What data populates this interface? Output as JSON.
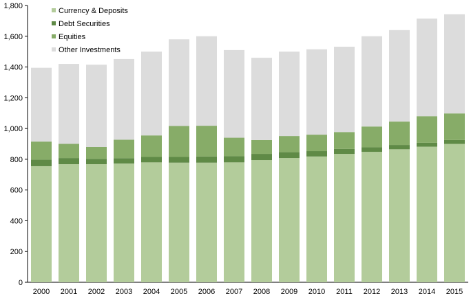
{
  "chart_data": {
    "type": "bar",
    "stacked": true,
    "title": "",
    "xlabel": "",
    "ylabel": "",
    "categories": [
      "2000",
      "2001",
      "2002",
      "2003",
      "2004",
      "2005",
      "2006",
      "2007",
      "2008",
      "2009",
      "2010",
      "2011",
      "2012",
      "2013",
      "2014",
      "2015"
    ],
    "series": [
      {
        "name": "Currency & Deposits",
        "color": "#b3cc9b",
        "values": [
          755,
          768,
          768,
          772,
          780,
          778,
          778,
          780,
          795,
          808,
          818,
          835,
          848,
          865,
          882,
          900
        ]
      },
      {
        "name": "Debt Securities",
        "color": "#5f8a46",
        "values": [
          42,
          40,
          35,
          35,
          35,
          37,
          40,
          40,
          40,
          38,
          35,
          32,
          30,
          28,
          25,
          25
        ]
      },
      {
        "name": "Equities",
        "color": "#87ac68",
        "values": [
          118,
          92,
          77,
          120,
          140,
          202,
          200,
          120,
          90,
          105,
          107,
          110,
          135,
          152,
          173,
          173
        ]
      },
      {
        "name": "Other Investments",
        "color": "#dcdcdc",
        "values": [
          480,
          520,
          535,
          525,
          545,
          563,
          582,
          570,
          535,
          549,
          555,
          555,
          587,
          595,
          635,
          645
        ]
      }
    ],
    "ylim": [
      0,
      1800
    ],
    "yticks": [
      "0",
      "200",
      "400",
      "600",
      "800",
      "1,000",
      "1,200",
      "1,400",
      "1,600",
      "1,800"
    ],
    "ytick_values": [
      0,
      200,
      400,
      600,
      800,
      1000,
      1200,
      1400,
      1600,
      1800
    ],
    "grid": false,
    "legend_position": "top-left"
  }
}
